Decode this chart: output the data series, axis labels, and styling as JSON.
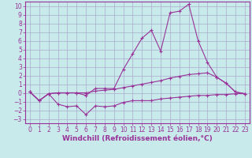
{
  "background_color": "#c8eaea",
  "grid_color": "#aaaacc",
  "line_color": "#993399",
  "xlabel": "Windchill (Refroidissement éolien,°C)",
  "xlabel_fontsize": 6.5,
  "tick_fontsize": 5.5,
  "xlim": [
    -0.5,
    23.5
  ],
  "ylim": [
    -3.5,
    10.5
  ],
  "xticks": [
    0,
    1,
    2,
    3,
    4,
    5,
    6,
    7,
    8,
    9,
    10,
    11,
    12,
    13,
    14,
    15,
    16,
    17,
    18,
    19,
    20,
    21,
    22,
    23
  ],
  "yticks": [
    -3,
    -2,
    -1,
    0,
    1,
    2,
    3,
    4,
    5,
    6,
    7,
    8,
    9,
    10
  ],
  "line1_x": [
    0,
    1,
    2,
    3,
    4,
    5,
    6,
    7,
    8,
    9,
    10,
    11,
    12,
    13,
    14,
    15,
    16,
    17,
    18,
    19,
    20,
    21,
    22,
    23
  ],
  "line1_y": [
    0.1,
    -0.9,
    -0.1,
    -1.3,
    -1.6,
    -1.5,
    -2.5,
    -1.5,
    -1.6,
    -1.5,
    -1.1,
    -0.9,
    -0.9,
    -0.9,
    -0.7,
    -0.6,
    -0.5,
    -0.4,
    -0.3,
    -0.3,
    -0.2,
    -0.2,
    -0.1,
    -0.1
  ],
  "line2_x": [
    0,
    1,
    2,
    3,
    4,
    5,
    6,
    7,
    8,
    9,
    10,
    11,
    12,
    13,
    14,
    15,
    16,
    17,
    18,
    19,
    20,
    21,
    22,
    23
  ],
  "line2_y": [
    0.1,
    -0.9,
    -0.1,
    0.0,
    0.0,
    0.0,
    0.0,
    0.2,
    0.3,
    0.4,
    0.6,
    0.8,
    1.0,
    1.2,
    1.4,
    1.7,
    1.9,
    2.1,
    2.2,
    2.3,
    1.8,
    1.1,
    0.1,
    -0.1
  ],
  "line3_x": [
    0,
    1,
    2,
    3,
    4,
    5,
    6,
    7,
    8,
    9,
    10,
    11,
    12,
    13,
    14,
    15,
    16,
    17,
    18,
    19,
    20,
    21,
    22,
    23
  ],
  "line3_y": [
    0.1,
    -0.9,
    -0.1,
    0.0,
    0.0,
    0.0,
    -0.3,
    0.5,
    0.5,
    0.5,
    2.7,
    4.5,
    6.3,
    7.2,
    4.8,
    9.2,
    9.4,
    10.2,
    6.0,
    3.5,
    1.8,
    1.1,
    0.1,
    -0.1
  ]
}
